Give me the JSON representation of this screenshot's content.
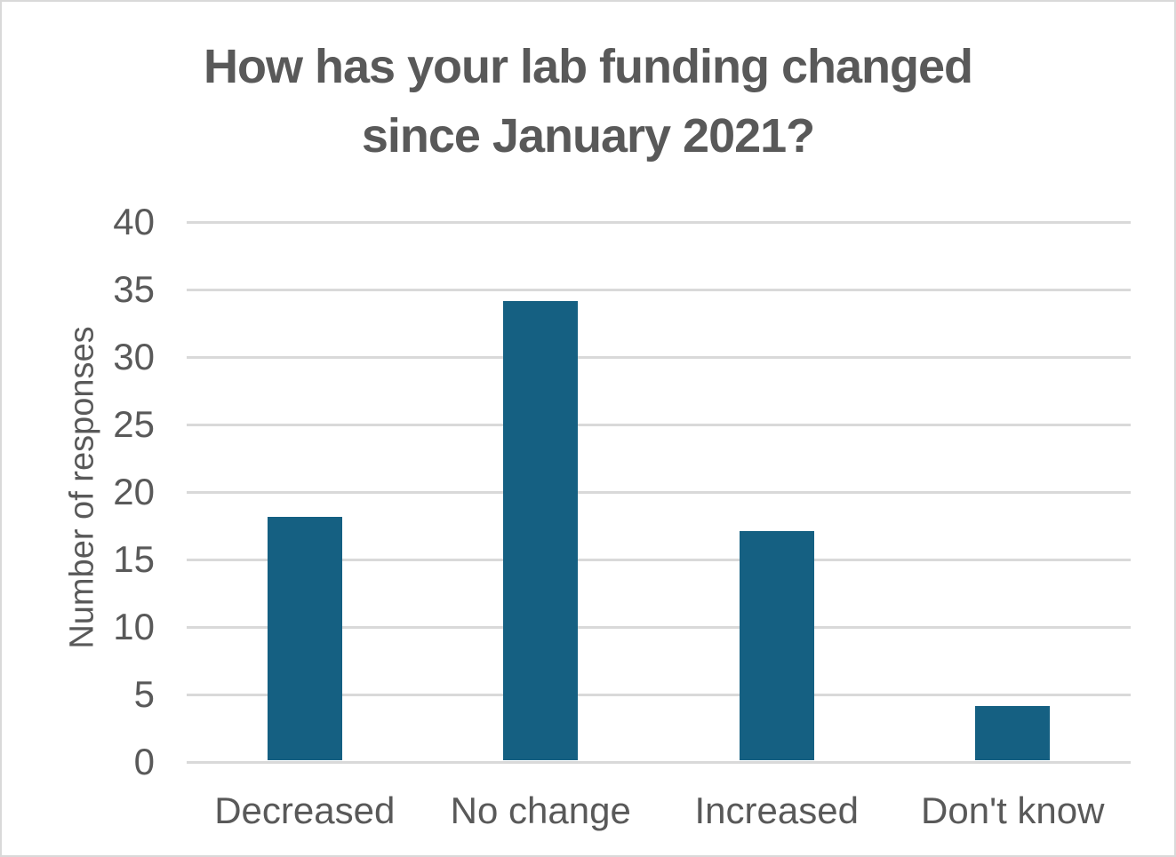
{
  "chart_data": {
    "type": "bar",
    "title": "How has your lab funding changed since January 2021?",
    "title_lines": [
      "How has your lab funding changed",
      "since January 2021?"
    ],
    "categories": [
      "Decreased",
      "No change",
      "Increased",
      "Don't know"
    ],
    "values": [
      18,
      34,
      17,
      4
    ],
    "xlabel": "",
    "ylabel": "Number of responses",
    "ylim": [
      0,
      40
    ],
    "yticks": [
      0,
      5,
      10,
      15,
      20,
      25,
      30,
      35,
      40
    ],
    "grid": true,
    "legend": "none",
    "colors": {
      "bar": "#156082",
      "gridline": "#d9d9d9",
      "text": "#595959",
      "background": "#ffffff",
      "frame_border": "#d9d9d9"
    }
  }
}
